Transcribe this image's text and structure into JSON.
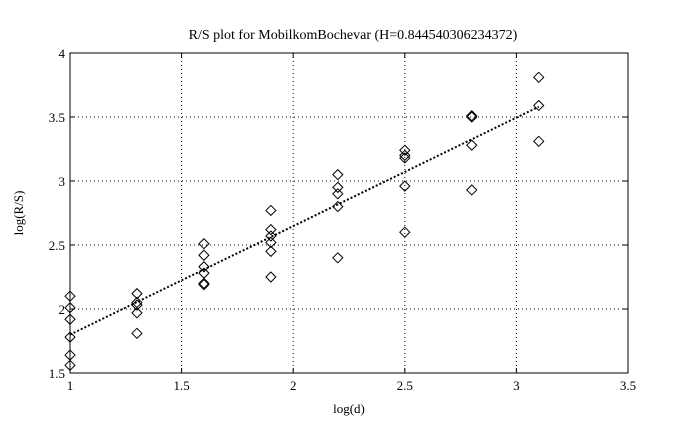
{
  "chart_data": {
    "type": "scatter",
    "title": "R/S plot for MobilkomBochevar (H=0.844540306234372)",
    "xlabel": "log(d)",
    "ylabel": "log(R/S)",
    "xlim": [
      1,
      3.5
    ],
    "ylim": [
      1.5,
      4
    ],
    "xticks": [
      1,
      1.5,
      2,
      2.5,
      3,
      3.5
    ],
    "yticks": [
      1.5,
      2,
      2.5,
      3,
      3.5,
      4
    ],
    "xtick_labels": [
      "1",
      "1.5",
      "2",
      "2.5",
      "3",
      "3.5"
    ],
    "ytick_labels": [
      "1.5",
      "2",
      "2.5",
      "3",
      "3.5",
      "4"
    ],
    "grid": true,
    "marker": "diamond",
    "series": [
      {
        "points": [
          [
            1.0,
            2.1
          ],
          [
            1.0,
            2.01
          ],
          [
            1.0,
            1.92
          ],
          [
            1.0,
            1.78
          ],
          [
            1.0,
            1.64
          ],
          [
            1.0,
            1.56
          ],
          [
            1.3,
            2.12
          ],
          [
            1.3,
            2.05
          ],
          [
            1.3,
            2.03
          ],
          [
            1.3,
            1.97
          ],
          [
            1.3,
            1.81
          ],
          [
            1.6,
            2.51
          ],
          [
            1.6,
            2.42
          ],
          [
            1.6,
            2.33
          ],
          [
            1.6,
            2.28
          ],
          [
            1.6,
            2.2
          ],
          [
            1.6,
            2.19
          ],
          [
            1.9,
            2.77
          ],
          [
            1.9,
            2.62
          ],
          [
            1.9,
            2.57
          ],
          [
            1.9,
            2.52
          ],
          [
            1.9,
            2.45
          ],
          [
            1.9,
            2.25
          ],
          [
            2.2,
            3.05
          ],
          [
            2.2,
            2.95
          ],
          [
            2.2,
            2.9
          ],
          [
            2.2,
            2.8
          ],
          [
            2.2,
            2.4
          ],
          [
            2.5,
            3.24
          ],
          [
            2.5,
            3.2
          ],
          [
            2.5,
            3.18
          ],
          [
            2.5,
            2.96
          ],
          [
            2.5,
            2.6
          ],
          [
            2.8,
            3.51
          ],
          [
            2.8,
            3.5
          ],
          [
            2.8,
            3.28
          ],
          [
            2.8,
            2.93
          ],
          [
            3.1,
            3.81
          ],
          [
            3.1,
            3.59
          ],
          [
            3.1,
            3.31
          ]
        ]
      }
    ],
    "fit_line": {
      "x": [
        1.0,
        3.1
      ],
      "y": [
        1.8,
        3.58
      ],
      "style": "dotted"
    }
  }
}
